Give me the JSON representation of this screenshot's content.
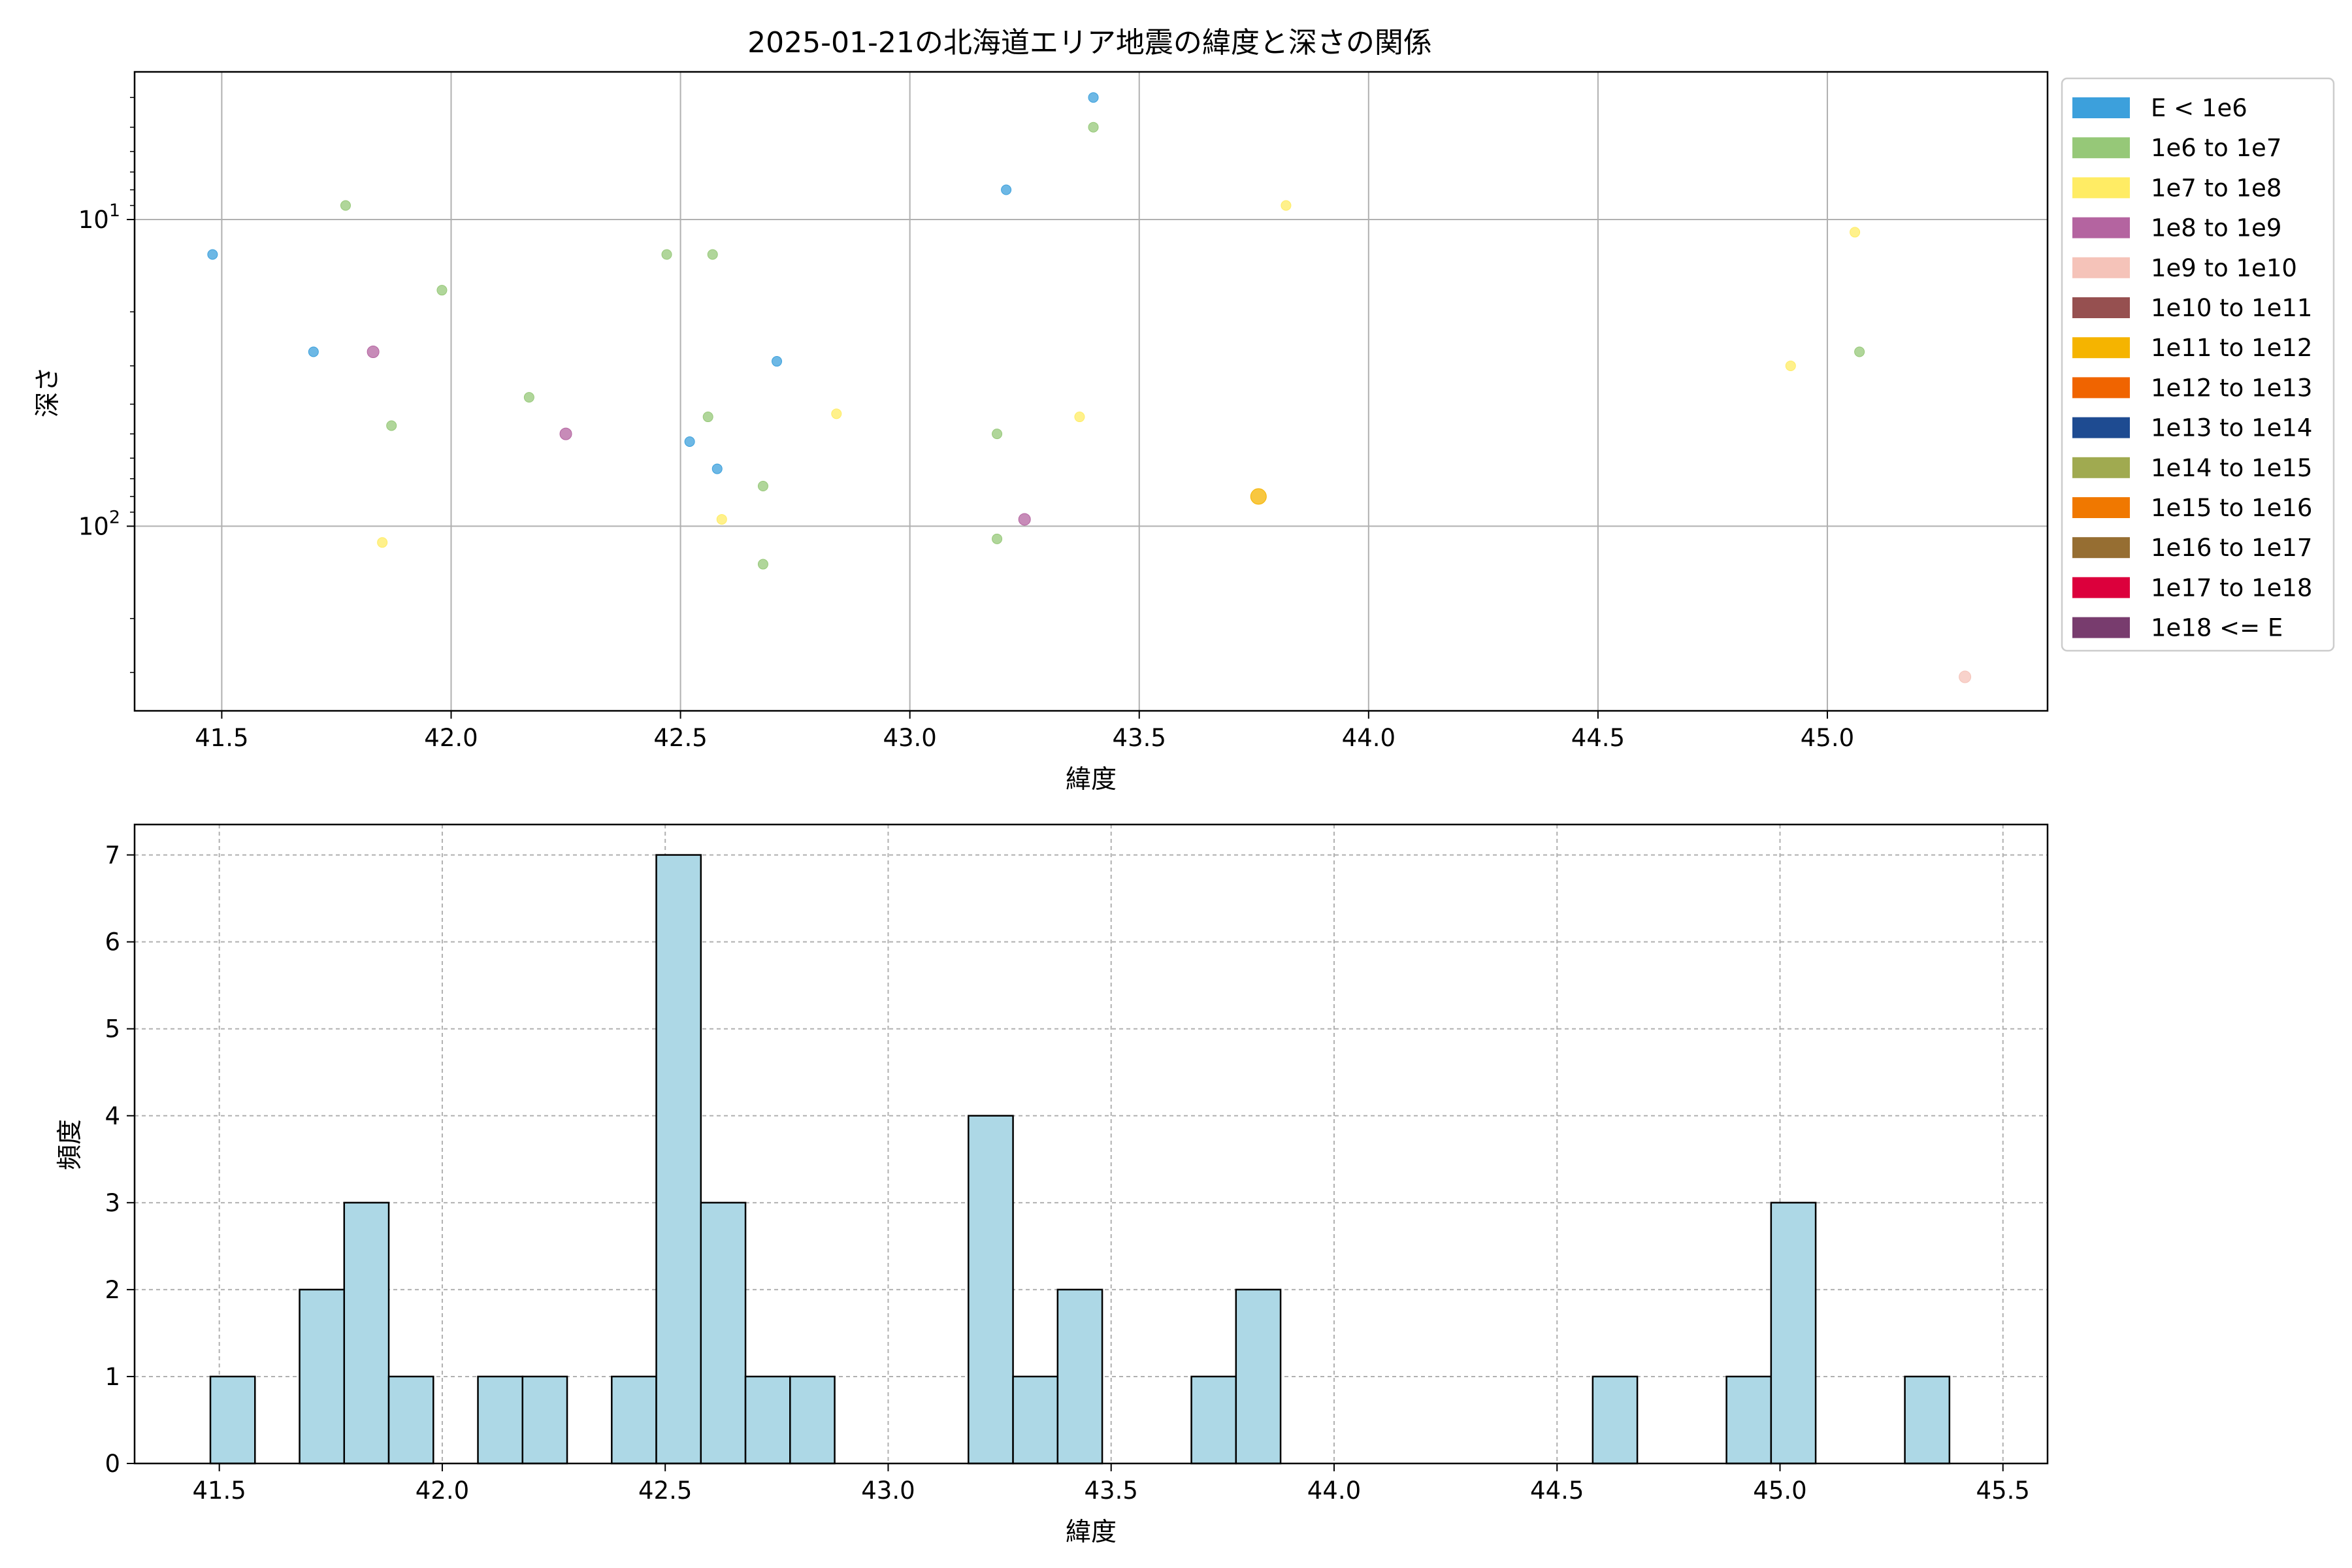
{
  "chart_data": [
    {
      "type": "scatter",
      "title": "2025-01-21の北海道エリア地震の緯度と深さの関係",
      "xlabel": "緯度",
      "ylabel": "深さ",
      "xlim": [
        41.31,
        45.48
      ],
      "ylim": [
        400,
        3.3
      ],
      "yscale": "log",
      "y_inverted": true,
      "grid": true,
      "xticks": [
        "41.5",
        "42.0",
        "42.5",
        "43.0",
        "43.5",
        "44.0",
        "44.5",
        "45.0"
      ],
      "yticks": [
        {
          "value": 10,
          "label": "10",
          "exp": "1"
        },
        {
          "value": 100,
          "label": "10",
          "exp": "2"
        }
      ],
      "legend_position": "outside-right",
      "legend": [
        {
          "label": "E < 1e6",
          "color": "#3ca0dc"
        },
        {
          "label": "1e6 to 1e7",
          "color": "#96c878"
        },
        {
          "label": "1e7 to 1e8",
          "color": "#ffec64"
        },
        {
          "label": "1e8 to 1e9",
          "color": "#b464a0"
        },
        {
          "label": "1e9 to 1e10",
          "color": "#f5c3b9"
        },
        {
          "label": "1e10 to 1e11",
          "color": "#965050"
        },
        {
          "label": "1e11 to 1e12",
          "color": "#f5b400"
        },
        {
          "label": "1e12 to 1e13",
          "color": "#f06400"
        },
        {
          "label": "1e13 to 1e14",
          "color": "#1e4b91"
        },
        {
          "label": "1e14 to 1e15",
          "color": "#a0aa50"
        },
        {
          "label": "1e15 to 1e16",
          "color": "#f07800"
        },
        {
          "label": "1e16 to 1e17",
          "color": "#966e32"
        },
        {
          "label": "1e17 to 1e18",
          "color": "#dc003c"
        },
        {
          "label": "1e18 <= E",
          "color": "#783c6e"
        }
      ],
      "points": [
        {
          "x": 41.48,
          "y": 13,
          "cls": 0
        },
        {
          "x": 41.7,
          "y": 27,
          "cls": 0
        },
        {
          "x": 42.52,
          "y": 53,
          "cls": 0
        },
        {
          "x": 42.58,
          "y": 65,
          "cls": 0
        },
        {
          "x": 42.71,
          "y": 29,
          "cls": 0
        },
        {
          "x": 43.21,
          "y": 8,
          "cls": 0
        },
        {
          "x": 43.4,
          "y": 4,
          "cls": 0
        },
        {
          "x": 41.77,
          "y": 9,
          "cls": 1
        },
        {
          "x": 41.87,
          "y": 47,
          "cls": 1
        },
        {
          "x": 41.98,
          "y": 17,
          "cls": 1
        },
        {
          "x": 42.17,
          "y": 38,
          "cls": 1
        },
        {
          "x": 42.47,
          "y": 13,
          "cls": 1
        },
        {
          "x": 42.56,
          "y": 44,
          "cls": 1
        },
        {
          "x": 42.57,
          "y": 13,
          "cls": 1
        },
        {
          "x": 42.68,
          "y": 133,
          "cls": 1
        },
        {
          "x": 42.68,
          "y": 74,
          "cls": 1
        },
        {
          "x": 43.19,
          "y": 50,
          "cls": 1
        },
        {
          "x": 43.19,
          "y": 110,
          "cls": 1
        },
        {
          "x": 43.4,
          "y": 5,
          "cls": 1
        },
        {
          "x": 45.07,
          "y": 27,
          "cls": 1
        },
        {
          "x": 41.85,
          "y": 113,
          "cls": 2
        },
        {
          "x": 42.59,
          "y": 95,
          "cls": 2
        },
        {
          "x": 42.84,
          "y": 43,
          "cls": 2
        },
        {
          "x": 43.37,
          "y": 44,
          "cls": 2
        },
        {
          "x": 43.82,
          "y": 9,
          "cls": 2
        },
        {
          "x": 44.92,
          "y": 30,
          "cls": 2
        },
        {
          "x": 45.06,
          "y": 11,
          "cls": 2
        },
        {
          "x": 41.83,
          "y": 27,
          "cls": 3
        },
        {
          "x": 42.25,
          "y": 50,
          "cls": 3
        },
        {
          "x": 43.25,
          "y": 95,
          "cls": 3
        },
        {
          "x": 45.3,
          "y": 310,
          "cls": 4
        },
        {
          "x": 43.76,
          "y": 80,
          "cls": 6
        }
      ]
    },
    {
      "type": "bar",
      "subtype": "histogram",
      "title": "",
      "xlabel": "緯度",
      "ylabel": "頻度",
      "xlim": [
        41.31,
        45.6
      ],
      "ylim": [
        0,
        7.35
      ],
      "grid": true,
      "bar_color": "#add8e6",
      "xticks": [
        "41.5",
        "42.0",
        "42.5",
        "43.0",
        "43.5",
        "44.0",
        "44.5",
        "45.0",
        "45.5"
      ],
      "yticks": [
        "0",
        "1",
        "2",
        "3",
        "4",
        "5",
        "6",
        "7"
      ],
      "bin_width": 0.1,
      "bins": [
        {
          "start": 41.48,
          "count": 1
        },
        {
          "start": 41.68,
          "count": 2
        },
        {
          "start": 41.78,
          "count": 3
        },
        {
          "start": 41.88,
          "count": 1
        },
        {
          "start": 42.08,
          "count": 1
        },
        {
          "start": 42.18,
          "count": 1
        },
        {
          "start": 42.38,
          "count": 1
        },
        {
          "start": 42.48,
          "count": 7
        },
        {
          "start": 42.58,
          "count": 3
        },
        {
          "start": 42.68,
          "count": 1
        },
        {
          "start": 42.78,
          "count": 1
        },
        {
          "start": 43.18,
          "count": 4
        },
        {
          "start": 43.28,
          "count": 1
        },
        {
          "start": 43.38,
          "count": 2
        },
        {
          "start": 43.68,
          "count": 1
        },
        {
          "start": 43.78,
          "count": 2
        },
        {
          "start": 44.58,
          "count": 1
        },
        {
          "start": 44.88,
          "count": 1
        },
        {
          "start": 44.98,
          "count": 3
        },
        {
          "start": 45.28,
          "count": 1
        }
      ]
    }
  ]
}
